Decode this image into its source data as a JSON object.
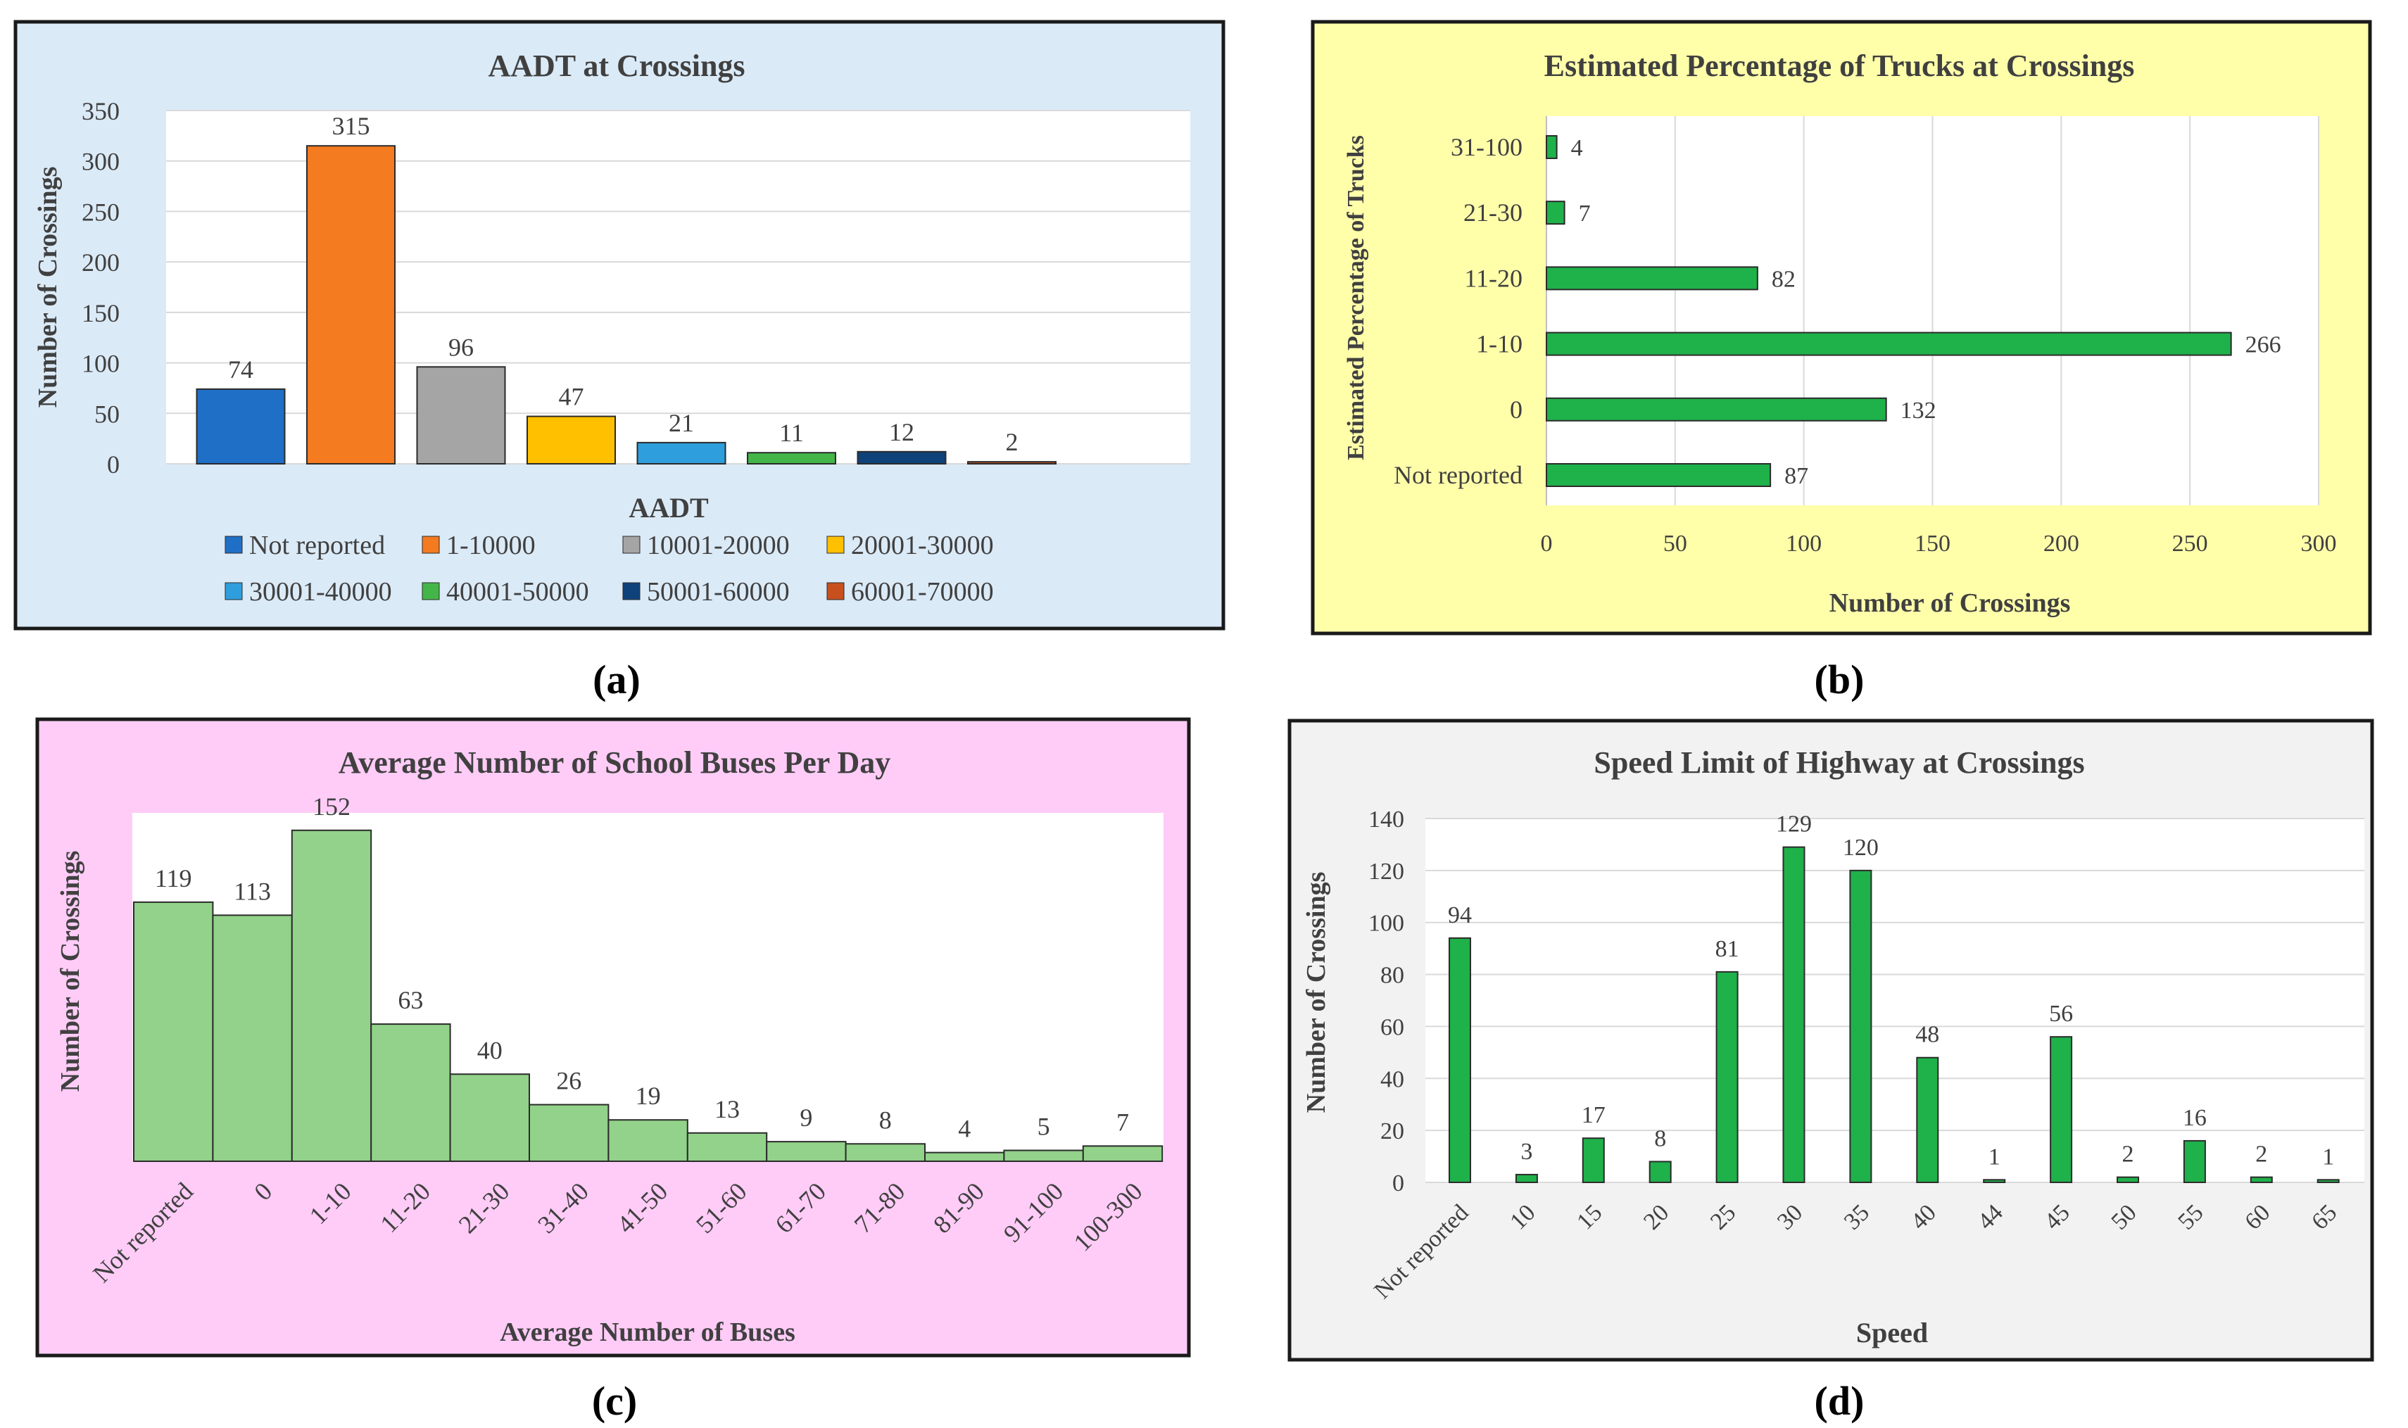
{
  "panels": [
    {
      "id": "a",
      "caption": "(a)"
    },
    {
      "id": "b",
      "caption": "(b)"
    },
    {
      "id": "c",
      "caption": "(c)"
    },
    {
      "id": "d",
      "caption": "(d)"
    }
  ],
  "chart_data": [
    {
      "id": "a",
      "type": "bar",
      "title": "AADT at Crossings",
      "xlabel": "AADT",
      "ylabel": "Number of Crossings",
      "ylim": [
        0,
        350
      ],
      "yticks": [
        "0",
        "50",
        "100",
        "150",
        "200",
        "250",
        "300",
        "350"
      ],
      "grid": true,
      "legend_position": "bottom",
      "background": "#dbeaf7",
      "series": [
        {
          "name": "Not reported",
          "value": 74,
          "color": "#1f6fc6"
        },
        {
          "name": "1-10000",
          "value": 315,
          "color": "#f47b20"
        },
        {
          "name": "10001-20000",
          "value": 96,
          "color": "#a5a5a5"
        },
        {
          "name": "20001-30000",
          "value": 47,
          "color": "#ffc000"
        },
        {
          "name": "30001-40000",
          "value": 21,
          "color": "#2e9fdc"
        },
        {
          "name": "40001-50000",
          "value": 11,
          "color": "#44b649"
        },
        {
          "name": "50001-60000",
          "value": 12,
          "color": "#10427a"
        },
        {
          "name": "60001-70000",
          "value": 2,
          "color": "#c8501e"
        }
      ]
    },
    {
      "id": "b",
      "type": "bar",
      "orientation": "horizontal",
      "title": "Estimated Percentage of Trucks at Crossings",
      "xlabel": "Number of Crossings",
      "ylabel": "Estimated Percentage of Trucks",
      "xlim": [
        0,
        300
      ],
      "xticks": [
        "0",
        "50",
        "100",
        "150",
        "200",
        "250",
        "300"
      ],
      "grid": true,
      "background": "#ffffaa",
      "bar_color": "#1fb14a",
      "categories": [
        "31-100",
        "21-30",
        "11-20",
        "1-10",
        "0",
        "Not reported"
      ],
      "values": [
        4,
        7,
        82,
        266,
        132,
        87
      ]
    },
    {
      "id": "c",
      "type": "bar",
      "title": "Average Number of School Buses Per Day",
      "xlabel": "Average Number of Buses",
      "ylabel": "Number of Crossings",
      "ylim": [
        0,
        160
      ],
      "grid": false,
      "background": "#ffccf7",
      "bar_color": "#92d28a",
      "categories": [
        "Not reported",
        "0",
        "1-10",
        "11-20",
        "21-30",
        "31-40",
        "41-50",
        "51-60",
        "61-70",
        "71-80",
        "81-90",
        "91-100",
        "100-300"
      ],
      "values": [
        119,
        113,
        152,
        63,
        40,
        26,
        19,
        13,
        9,
        8,
        4,
        5,
        7
      ]
    },
    {
      "id": "d",
      "type": "bar",
      "title": "Speed Limit of Highway at Crossings",
      "xlabel": "Speed",
      "ylabel": "Number of Crossings",
      "ylim": [
        0,
        140
      ],
      "yticks": [
        "0",
        "20",
        "40",
        "60",
        "80",
        "100",
        "120",
        "140"
      ],
      "grid": true,
      "background": "#f2f2f2",
      "bar_color": "#1fb14a",
      "categories": [
        "Not reported",
        "10",
        "15",
        "20",
        "25",
        "30",
        "35",
        "40",
        "44",
        "45",
        "50",
        "55",
        "60",
        "65"
      ],
      "values": [
        94,
        3,
        17,
        8,
        81,
        129,
        120,
        48,
        1,
        56,
        2,
        16,
        2,
        1
      ]
    }
  ]
}
